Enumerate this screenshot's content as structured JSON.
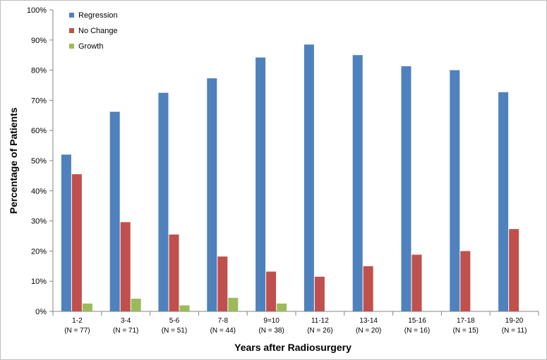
{
  "chart_data": {
    "type": "bar",
    "xlabel": "Years after Radiosurgery",
    "ylabel": "Percentage of Patients",
    "ylim": [
      0,
      100
    ],
    "yticks": [
      "0%",
      "10%",
      "20%",
      "30%",
      "40%",
      "50%",
      "60%",
      "70%",
      "80%",
      "90%",
      "100%"
    ],
    "categories": [
      {
        "label": "1-2",
        "n": "(N = 77)"
      },
      {
        "label": "3-4",
        "n": "(N = 71)"
      },
      {
        "label": "5-6",
        "n": "(N = 51)"
      },
      {
        "label": "7-8",
        "n": "(N = 44)"
      },
      {
        "label": "9=10",
        "n": "(N = 38)"
      },
      {
        "label": "11-12",
        "n": "(N = 26)"
      },
      {
        "label": "13-14",
        "n": "(N = 20)"
      },
      {
        "label": "15-16",
        "n": "(N = 16)"
      },
      {
        "label": "17-18",
        "n": "(N = 15)"
      },
      {
        "label": "19-20",
        "n": "(N = 11)"
      }
    ],
    "series": [
      {
        "name": "Regression",
        "color": "#4f81bd",
        "values": [
          52,
          66.2,
          72.5,
          77.3,
          84.2,
          88.5,
          85,
          81.3,
          80,
          72.7
        ]
      },
      {
        "name": "No Change",
        "color": "#c0504d",
        "values": [
          45.5,
          29.6,
          25.5,
          18.2,
          13.2,
          11.5,
          15,
          18.8,
          20,
          27.3
        ]
      },
      {
        "name": "Growth",
        "color": "#9bbb59",
        "values": [
          2.6,
          4.2,
          2.0,
          4.5,
          2.6,
          0,
          0,
          0,
          0,
          0
        ]
      }
    ],
    "grid": false,
    "legend": "top-left"
  }
}
